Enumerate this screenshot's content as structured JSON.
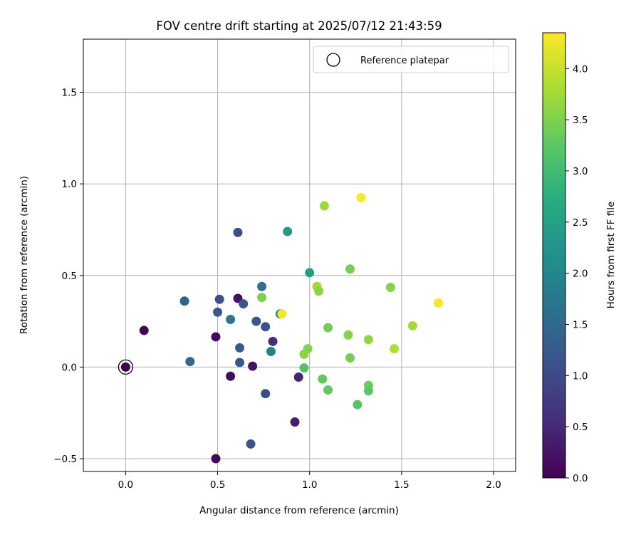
{
  "chart_data": {
    "type": "scatter",
    "title": "FOV centre drift starting at 2025/07/12 21:43:59",
    "xlabel": "Angular distance from reference (arcmin)",
    "ylabel": "Rotation from reference (arcmin)",
    "xlim": [
      -0.23,
      2.12
    ],
    "ylim": [
      -0.57,
      1.79
    ],
    "xticks": [
      0.0,
      0.5,
      1.0,
      1.5,
      2.0
    ],
    "xtick_labels": [
      "0.0",
      "0.5",
      "1.0",
      "1.5",
      "2.0"
    ],
    "yticks": [
      -0.5,
      0.0,
      0.5,
      1.0,
      1.5
    ],
    "ytick_labels": [
      "−0.5",
      "0.0",
      "0.5",
      "1.0",
      "1.5"
    ],
    "grid": true,
    "legend": {
      "placement": "top-right",
      "entries": [
        {
          "label": "Reference platepar",
          "marker": "open-circle"
        }
      ]
    },
    "reference_point": {
      "x": 0.0,
      "y": 0.0
    },
    "colorbar": {
      "label": "Hours from first FF file",
      "colormap": "viridis",
      "range": [
        0.0,
        4.35
      ],
      "ticks": [
        0.0,
        0.5,
        1.0,
        1.5,
        2.0,
        2.5,
        3.0,
        3.5,
        4.0
      ],
      "tick_labels": [
        "0.0",
        "0.5",
        "1.0",
        "1.5",
        "2.0",
        "2.5",
        "3.0",
        "3.5",
        "4.0"
      ]
    },
    "points": [
      {
        "x": 0.0,
        "y": 0.0,
        "hours": 0.0
      },
      {
        "x": 0.1,
        "y": 0.2,
        "hours": 0.05
      },
      {
        "x": 0.49,
        "y": 0.165,
        "hours": 0.1
      },
      {
        "x": 0.49,
        "y": -0.5,
        "hours": 0.1
      },
      {
        "x": 0.57,
        "y": -0.05,
        "hours": 0.15
      },
      {
        "x": 0.61,
        "y": 0.375,
        "hours": 0.2
      },
      {
        "x": 0.69,
        "y": 0.005,
        "hours": 0.25
      },
      {
        "x": 0.92,
        "y": -0.3,
        "hours": 0.35
      },
      {
        "x": 0.94,
        "y": -0.055,
        "hours": 0.45
      },
      {
        "x": 0.8,
        "y": 0.14,
        "hours": 0.55
      },
      {
        "x": 0.76,
        "y": -0.145,
        "hours": 1.05
      },
      {
        "x": 0.68,
        "y": -0.42,
        "hours": 1.15
      },
      {
        "x": 0.62,
        "y": 0.025,
        "hours": 1.2
      },
      {
        "x": 0.61,
        "y": 0.735,
        "hours": 1.05
      },
      {
        "x": 0.51,
        "y": 0.37,
        "hours": 1.05
      },
      {
        "x": 0.5,
        "y": 0.3,
        "hours": 1.2
      },
      {
        "x": 0.64,
        "y": 0.345,
        "hours": 1.15
      },
      {
        "x": 0.71,
        "y": 0.25,
        "hours": 1.2
      },
      {
        "x": 0.76,
        "y": 0.22,
        "hours": 1.1
      },
      {
        "x": 0.62,
        "y": 0.105,
        "hours": 1.25
      },
      {
        "x": 0.32,
        "y": 0.36,
        "hours": 1.4
      },
      {
        "x": 0.35,
        "y": 0.03,
        "hours": 1.45
      },
      {
        "x": 0.57,
        "y": 0.26,
        "hours": 1.7
      },
      {
        "x": 0.74,
        "y": 0.44,
        "hours": 1.65
      },
      {
        "x": 0.79,
        "y": 0.085,
        "hours": 1.9
      },
      {
        "x": 0.84,
        "y": 0.29,
        "hours": 2.2
      },
      {
        "x": 0.88,
        "y": 0.74,
        "hours": 2.35
      },
      {
        "x": 1.0,
        "y": 0.515,
        "hours": 2.45
      },
      {
        "x": 0.97,
        "y": -0.005,
        "hours": 3.15
      },
      {
        "x": 1.07,
        "y": -0.065,
        "hours": 3.3
      },
      {
        "x": 1.1,
        "y": -0.125,
        "hours": 3.3
      },
      {
        "x": 1.26,
        "y": -0.205,
        "hours": 3.2
      },
      {
        "x": 1.32,
        "y": -0.1,
        "hours": 3.35
      },
      {
        "x": 1.32,
        "y": -0.13,
        "hours": 3.25
      },
      {
        "x": 1.22,
        "y": 0.05,
        "hours": 3.45
      },
      {
        "x": 1.21,
        "y": 0.175,
        "hours": 3.55
      },
      {
        "x": 1.32,
        "y": 0.15,
        "hours": 3.65
      },
      {
        "x": 1.1,
        "y": 0.215,
        "hours": 3.4
      },
      {
        "x": 0.99,
        "y": 0.1,
        "hours": 3.55
      },
      {
        "x": 0.97,
        "y": 0.07,
        "hours": 3.6
      },
      {
        "x": 1.04,
        "y": 0.44,
        "hours": 3.75
      },
      {
        "x": 1.05,
        "y": 0.415,
        "hours": 3.6
      },
      {
        "x": 0.74,
        "y": 0.38,
        "hours": 3.5
      },
      {
        "x": 1.22,
        "y": 0.535,
        "hours": 3.45
      },
      {
        "x": 1.44,
        "y": 0.435,
        "hours": 3.55
      },
      {
        "x": 1.56,
        "y": 0.225,
        "hours": 3.75
      },
      {
        "x": 1.46,
        "y": 0.1,
        "hours": 3.85
      },
      {
        "x": 1.08,
        "y": 0.88,
        "hours": 3.7
      },
      {
        "x": 1.28,
        "y": 0.925,
        "hours": 4.35
      },
      {
        "x": 0.85,
        "y": 0.29,
        "hours": 4.3
      },
      {
        "x": 1.7,
        "y": 0.35,
        "hours": 4.3
      }
    ]
  }
}
